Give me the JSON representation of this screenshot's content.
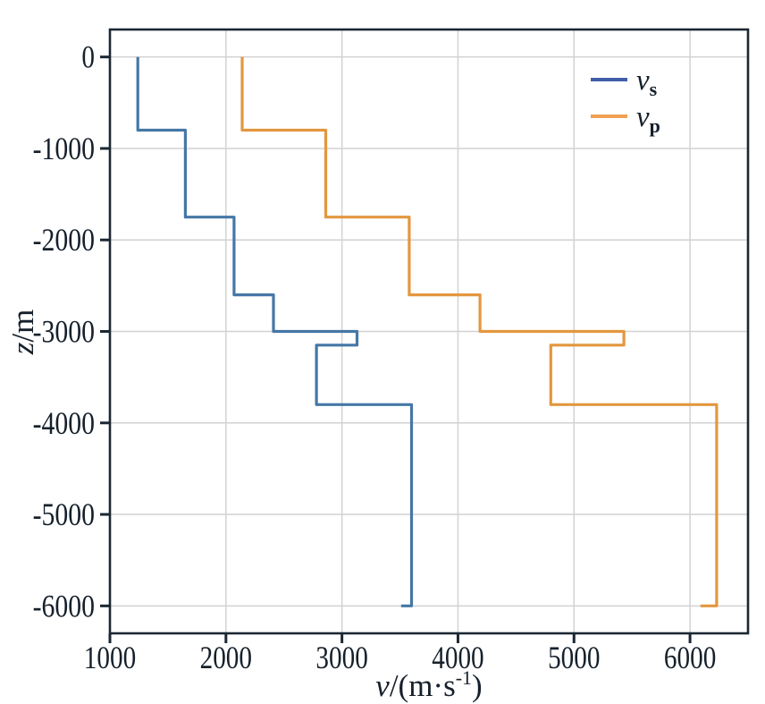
{
  "chart_data": {
    "type": "line",
    "variant": "step-velocity-depth-profile",
    "title": "",
    "xlabel": "v/(m·s⁻¹)",
    "ylabel": "z/m",
    "xlabel_parts": {
      "var": "v",
      "unit_open": "/(m·s",
      "sup": "-1",
      "close": ")"
    },
    "ylabel_parts": {
      "var": "z",
      "unit": "/m"
    },
    "xlim": [
      1000,
      6500
    ],
    "ylim": [
      -6300,
      300
    ],
    "x_ticks": [
      1000,
      2000,
      3000,
      4000,
      5000,
      6000
    ],
    "y_ticks": [
      0,
      -1000,
      -2000,
      -3000,
      -4000,
      -5000,
      -6000
    ],
    "grid": true,
    "legend_position": "upper-right-inside",
    "layer_boundaries_m": [
      0,
      -800,
      -1750,
      -2600,
      -3000,
      -3150,
      -3800,
      -6000
    ],
    "series": [
      {
        "name": "vs",
        "legend_label": {
          "var": "v",
          "sub": "s"
        },
        "color": "#4577a6",
        "legend_color": "#3f5fa9",
        "layer_velocities": [
          1240,
          1650,
          2070,
          2410,
          3130,
          2780,
          3600
        ],
        "end_value_at_bottom": 3510
      },
      {
        "name": "vp",
        "legend_label": {
          "var": "v",
          "sub": "p"
        },
        "color": "#e3973f",
        "legend_color": "#f0a054",
        "layer_velocities": [
          2140,
          2860,
          3580,
          4190,
          5430,
          4800,
          6230
        ],
        "end_value_at_bottom": 6090
      }
    ]
  }
}
